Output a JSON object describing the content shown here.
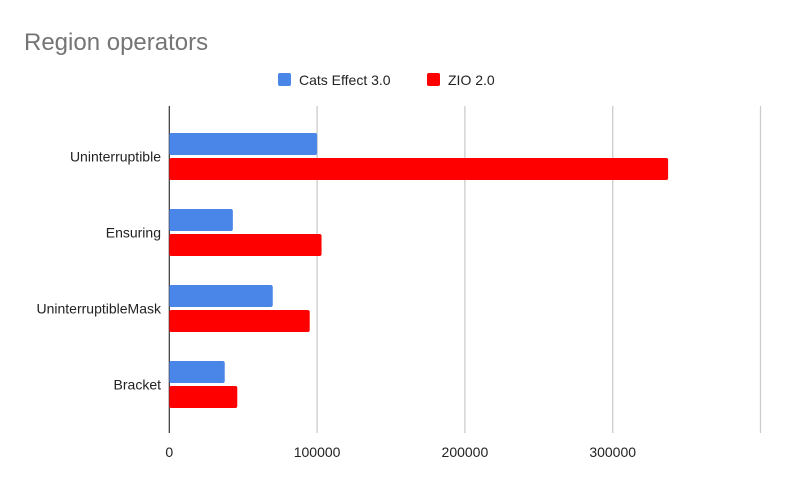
{
  "chart_data": {
    "type": "bar",
    "orientation": "horizontal",
    "title": "Region operators",
    "categories": [
      "Uninterruptible",
      "Ensuring",
      "UninterruptibleMask",
      "Bracket"
    ],
    "series": [
      {
        "name": "Cats Effect 3.0",
        "color": "#4a86e8",
        "values": [
          100000,
          43000,
          70000,
          37500
        ]
      },
      {
        "name": "ZIO 2.0",
        "color": "#ff0000",
        "values": [
          337500,
          103000,
          95000,
          46000
        ]
      }
    ],
    "xticks": [
      "0",
      "100000",
      "200000",
      "300000"
    ],
    "xlim": [
      0,
      400000
    ],
    "grid": true,
    "legend": "top"
  }
}
